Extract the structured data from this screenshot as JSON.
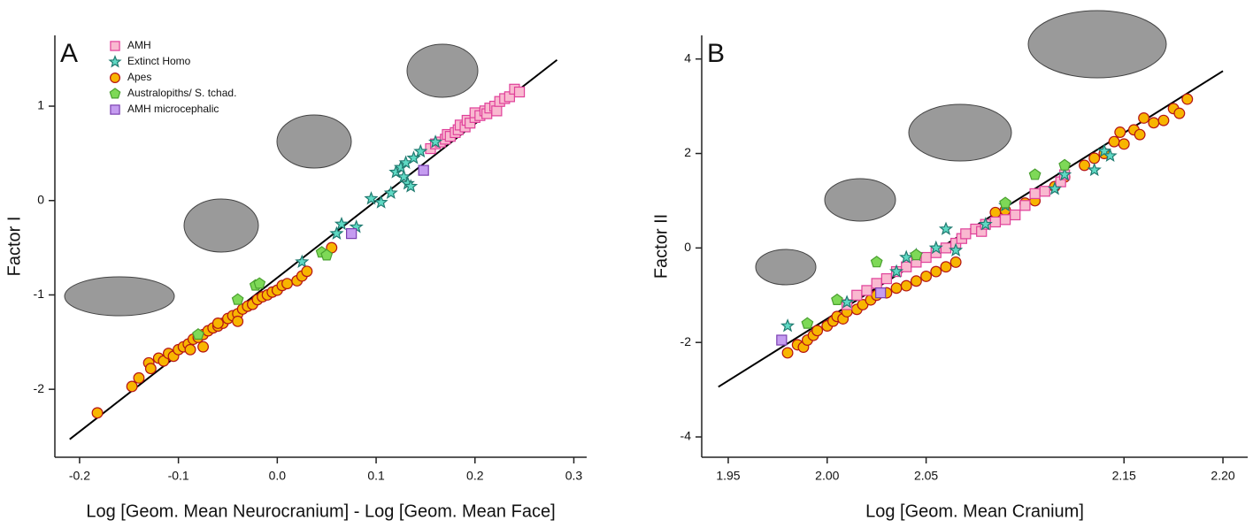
{
  "chart_data": [
    {
      "type": "scatter",
      "panel_label": "A",
      "xlabel": "Log [Geom. Mean Neurocranium] - Log [Geom. Mean Face]",
      "ylabel": "Factor I",
      "xlim": [
        -0.225,
        0.313
      ],
      "ylim": [
        -2.72,
        1.75
      ],
      "xticks": [
        -0.2,
        -0.1,
        {
          "value": 0,
          "label": "0.0"
        },
        0.1,
        0.2,
        0.3
      ],
      "yticks": [
        1,
        0,
        -1,
        -2
      ],
      "legend": "upper-left",
      "fit_line": {
        "x": [
          -0.21,
          0.283
        ],
        "values": [
          -2.53,
          1.49
        ]
      },
      "series": [
        {
          "name": "AMH",
          "color": "#f9b9d0",
          "edge": "#e0409a",
          "marker": "square",
          "x": [
            0.155,
            0.16,
            0.165,
            0.17,
            0.172,
            0.175,
            0.18,
            0.183,
            0.185,
            0.19,
            0.192,
            0.195,
            0.2,
            0.2,
            0.205,
            0.21,
            0.212,
            0.215,
            0.22,
            0.222,
            0.225,
            0.23,
            0.235,
            0.24,
            0.245
          ],
          "values": [
            0.55,
            0.6,
            0.62,
            0.65,
            0.7,
            0.68,
            0.72,
            0.75,
            0.8,
            0.78,
            0.85,
            0.82,
            0.88,
            0.93,
            0.9,
            0.95,
            0.92,
            0.98,
            1.0,
            0.95,
            1.05,
            1.08,
            1.1,
            1.18,
            1.15
          ]
        },
        {
          "name": "Extinct Homo",
          "color": "#5fd9c4",
          "edge": "#207a70",
          "marker": "star",
          "x": [
            0.025,
            0.06,
            0.065,
            0.08,
            0.095,
            0.105,
            0.115,
            0.12,
            0.125,
            0.128,
            0.13,
            0.132,
            0.135,
            0.138,
            0.145,
            0.16
          ],
          "values": [
            -0.65,
            -0.35,
            -0.25,
            -0.28,
            0.02,
            -0.02,
            0.08,
            0.3,
            0.35,
            0.25,
            0.4,
            0.18,
            0.15,
            0.45,
            0.52,
            0.62
          ]
        },
        {
          "name": "Apes",
          "color": "#f8b500",
          "edge": "#b51515",
          "marker": "circle",
          "x": [
            -0.182,
            -0.147,
            -0.14,
            -0.13,
            -0.128,
            -0.12,
            -0.115,
            -0.11,
            -0.105,
            -0.1,
            -0.095,
            -0.09,
            -0.088,
            -0.085,
            -0.08,
            -0.075,
            -0.07,
            -0.065,
            -0.06,
            -0.055,
            -0.05,
            -0.045,
            -0.04,
            -0.035,
            -0.03,
            -0.025,
            -0.02,
            -0.015,
            -0.01,
            -0.005,
            0.0,
            0.005,
            0.01,
            0.02,
            0.025,
            0.03,
            0.055,
            -0.075,
            -0.06,
            -0.04
          ],
          "values": [
            -2.25,
            -1.97,
            -1.88,
            -1.72,
            -1.78,
            -1.67,
            -1.7,
            -1.62,
            -1.65,
            -1.58,
            -1.55,
            -1.52,
            -1.58,
            -1.47,
            -1.45,
            -1.42,
            -1.38,
            -1.35,
            -1.33,
            -1.3,
            -1.25,
            -1.22,
            -1.2,
            -1.15,
            -1.12,
            -1.1,
            -1.05,
            -1.02,
            -1.0,
            -0.97,
            -0.95,
            -0.9,
            -0.88,
            -0.85,
            -0.8,
            -0.75,
            -0.5,
            -1.55,
            -1.3,
            -1.28
          ]
        },
        {
          "name": "Australopiths/ S. tchad.",
          "color": "#7ed957",
          "edge": "#4aa030",
          "marker": "pentagon",
          "x": [
            -0.08,
            -0.04,
            -0.022,
            -0.018,
            0.045,
            0.05
          ],
          "values": [
            -1.42,
            -1.05,
            -0.9,
            -0.88,
            -0.55,
            -0.58
          ]
        },
        {
          "name": "AMH microcephalic",
          "color": "#c59cf0",
          "edge": "#7a3fb0",
          "marker": "square",
          "x": [
            0.075,
            0.148
          ],
          "values": [
            -0.35,
            0.32
          ]
        }
      ]
    },
    {
      "type": "scatter",
      "panel_label": "B",
      "xlabel": "Log [Geom. Mean Cranium]",
      "ylabel": "Factor II",
      "xlim": [
        1.9366,
        2.2125
      ],
      "ylim": [
        -4.43,
        4.5
      ],
      "xticks": [
        1.95,
        {
          "value": 2,
          "label": "2.00"
        },
        2.05,
        2.15,
        {
          "value": 2.2,
          "label": "2.20"
        }
      ],
      "yticks": [
        4,
        2,
        0,
        -2,
        -4
      ],
      "fit_line": {
        "x": [
          1.945,
          2.2
        ],
        "values": [
          -2.94,
          3.745
        ]
      },
      "series": [
        {
          "color": "#f8b500",
          "edge": "#b51515",
          "marker": "circle",
          "x": [
            1.98,
            1.985,
            1.988,
            1.99,
            1.993,
            1.995,
            2.0,
            2.003,
            2.005,
            2.008,
            2.01,
            2.015,
            2.018,
            2.022,
            2.025,
            2.03,
            2.035,
            2.04,
            2.045,
            2.05,
            2.055,
            2.06,
            2.065,
            2.085,
            2.09,
            2.1,
            2.105,
            2.115,
            2.12,
            2.13,
            2.135,
            2.14,
            2.145,
            2.148,
            2.15,
            2.155,
            2.158,
            2.16,
            2.165,
            2.17,
            2.175,
            2.178,
            2.182
          ],
          "values": [
            -2.22,
            -2.05,
            -2.1,
            -1.95,
            -1.85,
            -1.75,
            -1.65,
            -1.55,
            -1.45,
            -1.5,
            -1.35,
            -1.3,
            -1.2,
            -1.1,
            -1.0,
            -0.95,
            -0.85,
            -0.8,
            -0.7,
            -0.6,
            -0.5,
            -0.4,
            -0.3,
            0.75,
            0.8,
            0.95,
            1.0,
            1.3,
            1.5,
            1.75,
            1.9,
            2.0,
            2.25,
            2.45,
            2.2,
            2.5,
            2.4,
            2.75,
            2.65,
            2.7,
            2.95,
            2.85,
            3.15
          ]
        },
        {
          "color": "#f9b9d0",
          "edge": "#e0409a",
          "marker": "square",
          "x": [
            2.01,
            2.015,
            2.02,
            2.025,
            2.03,
            2.035,
            2.04,
            2.045,
            2.05,
            2.055,
            2.06,
            2.065,
            2.068,
            2.07,
            2.075,
            2.078,
            2.08,
            2.085,
            2.09,
            2.095,
            2.1,
            2.105,
            2.11,
            2.118,
            2.12
          ],
          "values": [
            -1.2,
            -1.0,
            -0.9,
            -0.75,
            -0.65,
            -0.5,
            -0.4,
            -0.3,
            -0.2,
            -0.1,
            0.0,
            0.1,
            0.2,
            0.3,
            0.4,
            0.35,
            0.5,
            0.55,
            0.6,
            0.7,
            0.9,
            1.15,
            1.2,
            1.4,
            1.55
          ]
        },
        {
          "color": "#5fd9c4",
          "edge": "#207a70",
          "marker": "star",
          "x": [
            1.98,
            2.01,
            2.035,
            2.04,
            2.045,
            2.055,
            2.06,
            2.065,
            2.08,
            2.09,
            2.115,
            2.12,
            2.135,
            2.14,
            2.143
          ],
          "values": [
            -1.65,
            -1.15,
            -0.5,
            -0.2,
            -0.15,
            0.0,
            0.4,
            -0.05,
            0.5,
            0.9,
            1.25,
            1.55,
            1.65,
            2.05,
            1.95
          ]
        },
        {
          "color": "#7ed957",
          "edge": "#4aa030",
          "marker": "pentagon",
          "x": [
            1.99,
            2.005,
            2.025,
            2.045,
            2.09,
            2.105,
            2.12
          ],
          "values": [
            -1.6,
            -1.1,
            -0.3,
            -0.15,
            0.95,
            1.55,
            1.75
          ]
        },
        {
          "color": "#c59cf0",
          "edge": "#7a3fb0",
          "marker": "square",
          "x": [
            1.977,
            2.027
          ],
          "values": [
            -1.95,
            -0.95
          ]
        }
      ]
    }
  ]
}
